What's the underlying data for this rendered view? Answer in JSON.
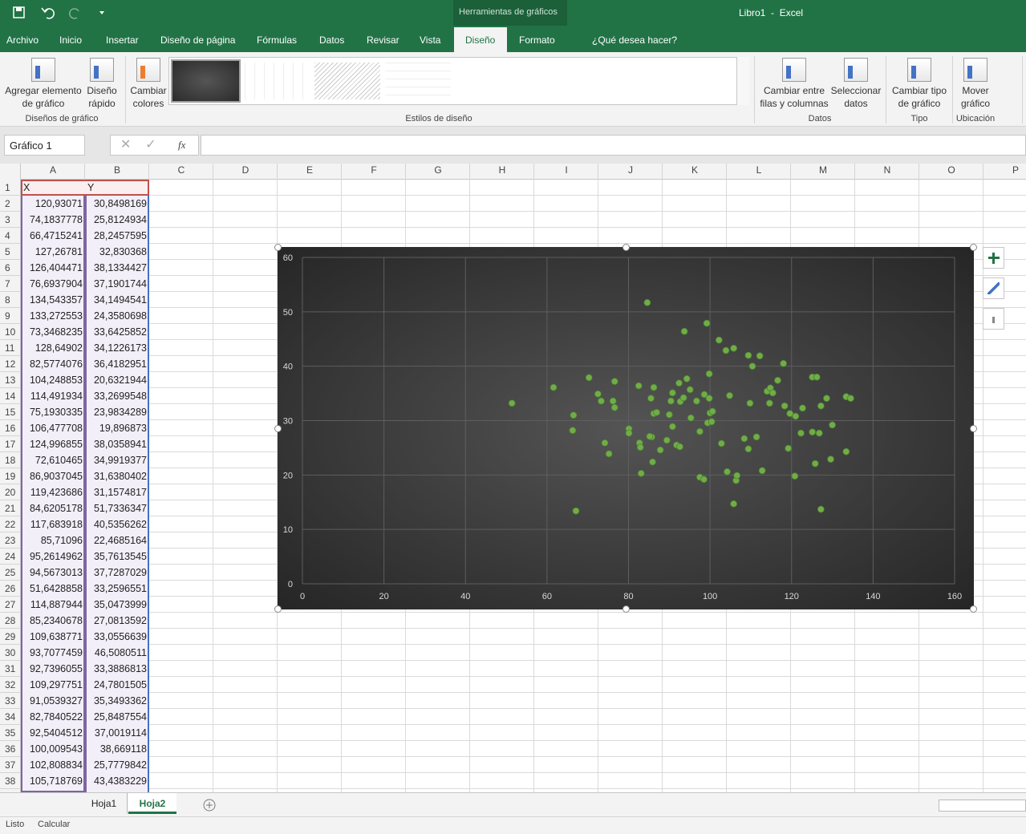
{
  "title_bar": {
    "context_tab": "Herramientas de gráficos",
    "title": "Libro1  -  Excel"
  },
  "ribbon_tabs": [
    "Archivo",
    "Inicio",
    "Insertar",
    "Diseño de página",
    "Fórmulas",
    "Datos",
    "Revisar",
    "Vista",
    "Diseño",
    "Formato"
  ],
  "tell_me": "¿Qué desea hacer?",
  "ribbon_groups": [
    {
      "label": "Diseños de gráfico",
      "buttons": [
        [
          "Agregar elemento",
          "de gráfico"
        ],
        [
          "Diseño",
          "rápido"
        ],
        [
          "Cambiar",
          "colores"
        ]
      ]
    },
    {
      "label": "Estilos de diseño"
    },
    {
      "label": "Datos",
      "buttons": [
        [
          "Cambiar entre",
          "filas y columnas"
        ],
        [
          "Seleccionar",
          "datos"
        ]
      ]
    },
    {
      "label": "Tipo",
      "buttons": [
        [
          "Cambiar tipo",
          "de gráfico"
        ]
      ]
    },
    {
      "label": "Ubicación",
      "buttons": [
        [
          "Mover",
          "gráfico"
        ]
      ]
    }
  ],
  "formula_bar": {
    "name_box": "Gráfico 1",
    "function_label": "fx"
  },
  "sheet": {
    "columns": [
      "A",
      "B",
      "C",
      "D",
      "E",
      "F",
      "G",
      "H",
      "I",
      "J",
      "K",
      "L",
      "M",
      "N",
      "O",
      "P"
    ],
    "row_numbers": [
      1,
      2,
      3,
      4,
      5,
      6,
      7,
      8,
      9,
      10,
      11,
      12,
      13,
      14,
      15,
      16,
      17,
      18,
      19,
      20,
      21,
      22,
      23,
      24,
      25,
      26,
      27,
      28,
      29,
      30,
      31,
      32,
      33,
      34,
      35,
      36,
      37,
      38
    ],
    "cells": [
      [
        "X",
        "Y"
      ],
      [
        "120,93071",
        "30,8498169"
      ],
      [
        "74,1837778",
        "25,8124934"
      ],
      [
        "66,4715241",
        "28,2457595"
      ],
      [
        "127,26781",
        "32,830368"
      ],
      [
        "126,404471",
        "38,1334427"
      ],
      [
        "76,6937904",
        "37,1901744"
      ],
      [
        "134,543357",
        "34,1494541"
      ],
      [
        "133,272553",
        "24,3580698"
      ],
      [
        "73,3468235",
        "33,6425852"
      ],
      [
        "128,64902",
        "34,1226173"
      ],
      [
        "82,5774076",
        "36,4182951"
      ],
      [
        "104,248853",
        "20,6321944"
      ],
      [
        "114,491934",
        "33,2699548"
      ],
      [
        "75,1930335",
        "23,9834289"
      ],
      [
        "106,477708",
        "19,896873"
      ],
      [
        "124,996855",
        "38,0358941"
      ],
      [
        "72,610465",
        "34,9919377"
      ],
      [
        "86,9037045",
        "31,6380402"
      ],
      [
        "119,423686",
        "31,1574817"
      ],
      [
        "84,6205178",
        "51,7336347"
      ],
      [
        "117,683918",
        "40,5356262"
      ],
      [
        "85,71096",
        "22,4685164"
      ],
      [
        "95,2614962",
        "35,7613545"
      ],
      [
        "94,5673013",
        "37,7287029"
      ],
      [
        "51,6428858",
        "33,2596551"
      ],
      [
        "114,887944",
        "35,0473999"
      ],
      [
        "85,2340678",
        "27,0813592"
      ],
      [
        "109,638771",
        "33,0556639"
      ],
      [
        "93,7077459",
        "46,5080511"
      ],
      [
        "92,7396055",
        "33,3886813"
      ],
      [
        "109,297751",
        "24,7801505"
      ],
      [
        "91,0539327",
        "35,3493362"
      ],
      [
        "82,7840522",
        "25,8487554"
      ],
      [
        "92,5404512",
        "37,0019114"
      ],
      [
        "100,009543",
        "38,669118"
      ],
      [
        "102,808834",
        "25,7779842"
      ],
      [
        "105,718769",
        "43,4383229"
      ]
    ]
  },
  "chart": {
    "type": "scatter",
    "color": "#70ad47",
    "grid": true,
    "xlim": [
      0,
      160
    ],
    "ylim": [
      0,
      60
    ],
    "xticks": [
      0,
      20,
      40,
      60,
      80,
      100,
      120,
      140,
      160
    ],
    "yticks": [
      0,
      10,
      20,
      30,
      40,
      50,
      60
    ],
    "x": [
      51.4,
      61.6,
      66.5,
      66.3,
      67.1,
      70.3,
      72.5,
      73.3,
      74.2,
      75.2,
      76.6,
      76.2,
      76.6,
      84.6,
      80.1,
      80.1,
      82.5,
      82.7,
      82.9,
      83.1,
      85.5,
      85.7,
      85.9,
      86.2,
      86.2,
      86.9,
      85.2,
      87.8,
      89.4,
      90.0,
      90.4,
      90.8,
      90.8,
      91.8,
      92.6,
      92.4,
      92.7,
      93.5,
      93.7,
      94.3,
      95.1,
      95.3,
      96.7,
      97.5,
      97.5,
      98.5,
      98.6,
      99.2,
      99.4,
      99.8,
      99.8,
      100.0,
      100.6,
      100.4,
      102.2,
      102.8,
      103.9,
      104.2,
      104.8,
      105.8,
      105.8,
      106.4,
      106.6,
      108.4,
      109.4,
      109.4,
      109.8,
      110.4,
      111.4,
      112.2,
      112.8,
      114.0,
      114.8,
      114.6,
      115.4,
      116.6,
      118.0,
      118.3,
      119.2,
      119.6,
      120.8,
      121.0,
      122.7,
      122.3,
      125.1,
      125.1,
      126.2,
      125.8,
      126.8,
      127.2,
      127.2,
      128.6,
      129.6,
      130.0,
      133.4,
      134.5,
      133.4
    ],
    "values": [
      33.2,
      36.1,
      31.0,
      28.2,
      13.4,
      37.9,
      34.9,
      33.6,
      25.9,
      23.9,
      37.2,
      33.6,
      32.4,
      51.7,
      28.5,
      27.7,
      36.4,
      25.9,
      25.1,
      20.3,
      34.1,
      27.0,
      22.4,
      36.1,
      31.3,
      31.5,
      27.1,
      24.6,
      26.4,
      31.1,
      33.6,
      35.1,
      28.9,
      25.5,
      25.2,
      36.9,
      33.5,
      34.2,
      46.4,
      37.7,
      35.7,
      30.5,
      33.6,
      28.0,
      19.6,
      19.2,
      34.8,
      47.9,
      29.6,
      34.1,
      38.6,
      31.4,
      31.7,
      29.8,
      44.8,
      25.8,
      42.9,
      20.6,
      34.6,
      43.3,
      14.7,
      19.0,
      19.9,
      26.7,
      42.0,
      24.8,
      33.2,
      40.0,
      27.0,
      41.9,
      20.8,
      35.4,
      36.0,
      33.2,
      35.1,
      37.4,
      40.5,
      32.7,
      24.9,
      31.3,
      19.8,
      30.8,
      32.3,
      27.7,
      27.9,
      38.0,
      38.0,
      22.1,
      27.7,
      32.7,
      13.7,
      34.1,
      22.9,
      29.2,
      34.4,
      34.1,
      24.3
    ]
  },
  "sheet_tabs": [
    "Hoja1",
    "Hoja2"
  ],
  "status_bar": [
    "Listo",
    "Calcular"
  ]
}
